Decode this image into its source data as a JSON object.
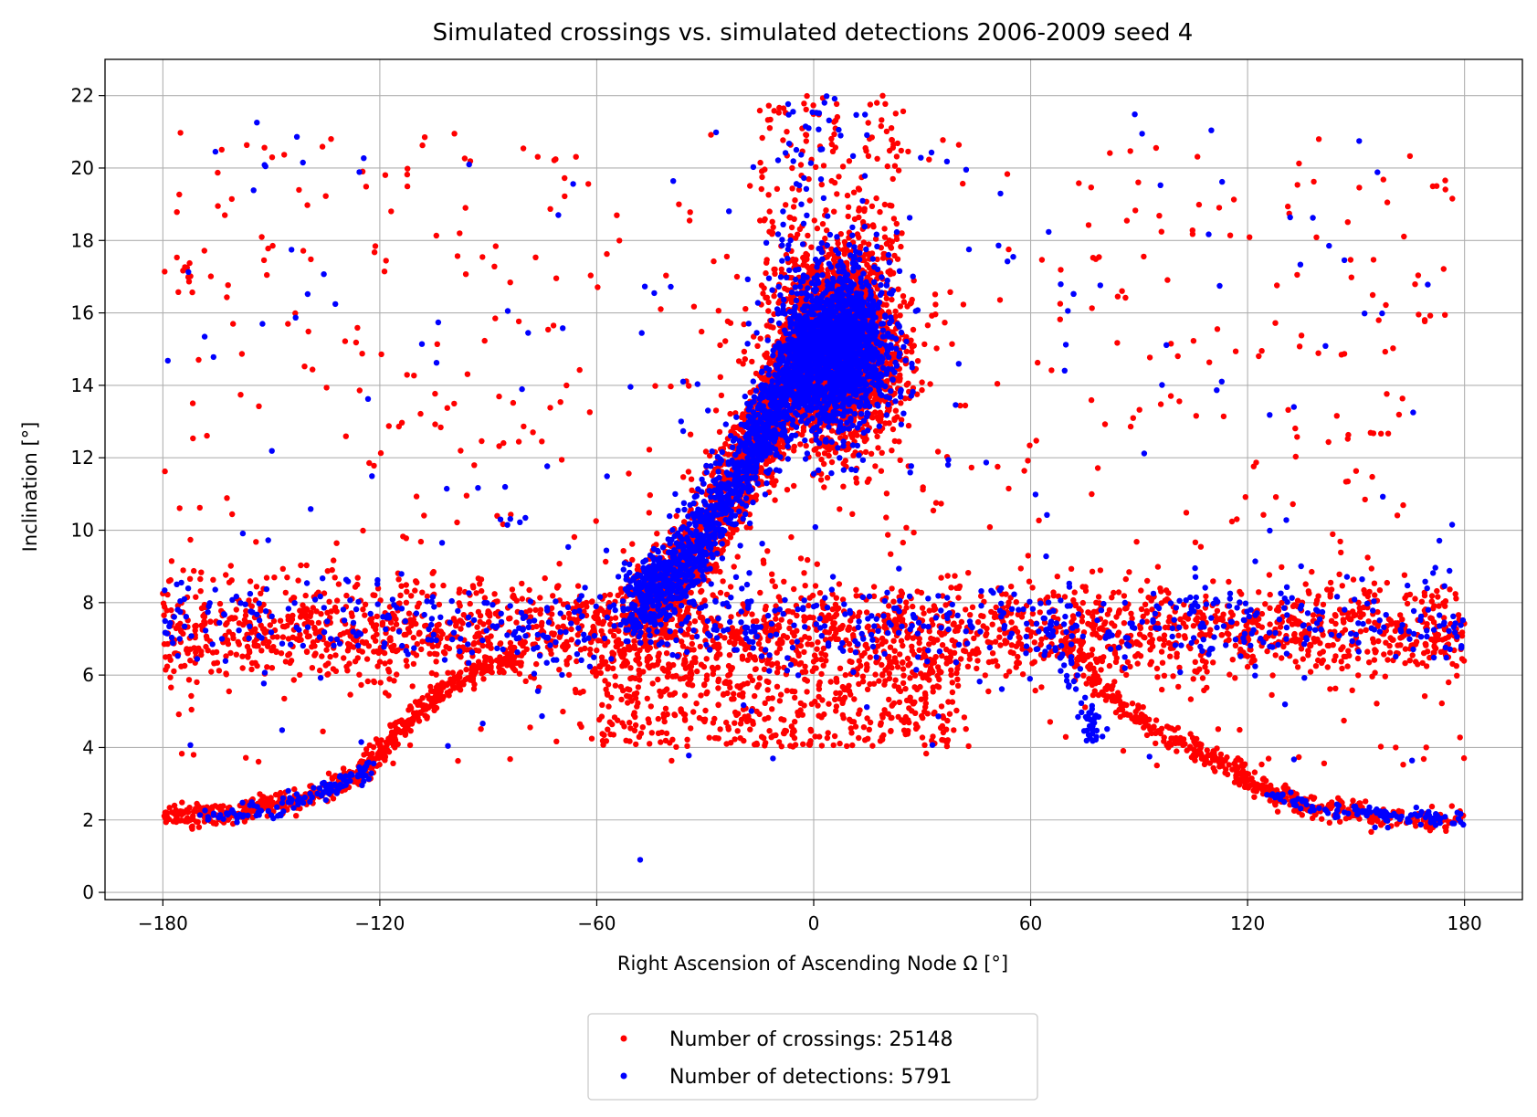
{
  "chart_data": {
    "type": "scatter",
    "title": "Simulated crossings vs. simulated detections 2006-2009 seed 4",
    "xlabel": "Right Ascension of Ascending Node Ω [°]",
    "ylabel": "Inclination [°]",
    "xlim": [
      -196,
      196
    ],
    "ylim": [
      -0.2,
      23
    ],
    "xticks": [
      -180,
      -120,
      -60,
      0,
      60,
      120,
      180
    ],
    "xtick_labels": [
      "−180",
      "−120",
      "−60",
      "0",
      "60",
      "120",
      "180"
    ],
    "yticks": [
      0,
      2,
      4,
      6,
      8,
      10,
      12,
      14,
      16,
      18,
      20,
      22
    ],
    "ytick_labels": [
      "0",
      "2",
      "4",
      "6",
      "8",
      "10",
      "12",
      "14",
      "16",
      "18",
      "20",
      "22"
    ],
    "grid": true,
    "legend_position": "below-center",
    "colors": {
      "crossings": "#ff0000",
      "detections": "#0000ff",
      "grid": "#b0b0b0",
      "axes": "#000000"
    },
    "series": [
      {
        "name": "Number of crossings: 25148",
        "color": "#ff0000",
        "clusters": [
          {
            "kind": "band",
            "x": [
              -180,
              180
            ],
            "y": [
              6,
              8.5
            ],
            "n": 2200
          },
          {
            "kind": "curve",
            "points": [
              [
                -180,
                2.1
              ],
              [
                -160,
                2.2
              ],
              [
                -140,
                2.6
              ],
              [
                -125,
                3.3
              ],
              [
                -115,
                4.5
              ],
              [
                -100,
                5.8
              ],
              [
                -80,
                6.6
              ]
            ],
            "spread": 0.15,
            "n": 600
          },
          {
            "kind": "curve",
            "points": [
              [
                70,
                7.0
              ],
              [
                80,
                5.5
              ],
              [
                100,
                4.2
              ],
              [
                115,
                3.5
              ],
              [
                125,
                2.8
              ],
              [
                140,
                2.3
              ],
              [
                160,
                2.1
              ],
              [
                180,
                2.0
              ]
            ],
            "spread": 0.15,
            "n": 500
          },
          {
            "kind": "diagonal",
            "points": [
              [
                -50,
                7.6
              ],
              [
                -35,
                9.0
              ],
              [
                -20,
                11.5
              ],
              [
                -10,
                13.5
              ],
              [
                0,
                15.0
              ]
            ],
            "spread": 0.6,
            "n": 1600
          },
          {
            "kind": "box",
            "x": [
              -8,
              22
            ],
            "y": [
              12.4,
              17.6
            ],
            "n": 2400
          },
          {
            "kind": "scatter",
            "x": [
              -180,
              180
            ],
            "y": [
              3.5,
              21
            ],
            "n": 600
          },
          {
            "kind": "scatter",
            "x": [
              -60,
              40
            ],
            "y": [
              4.0,
              6.5
            ],
            "n": 500
          },
          {
            "kind": "scatter",
            "x": [
              -15,
              25
            ],
            "y": [
              17,
              22
            ],
            "n": 160
          },
          {
            "kind": "scatter",
            "x": [
              -180,
              -172
            ],
            "y": [
              16.5,
              18
            ],
            "n": 10
          }
        ]
      },
      {
        "name": "Number of detections: 5791",
        "color": "#0000ff",
        "clusters": [
          {
            "kind": "band",
            "x": [
              -180,
              180
            ],
            "y": [
              6.4,
              8.4
            ],
            "n": 650
          },
          {
            "kind": "curve",
            "points": [
              [
                -170,
                2.1
              ],
              [
                -150,
                2.3
              ],
              [
                -135,
                2.8
              ],
              [
                -122,
                3.4
              ]
            ],
            "spread": 0.12,
            "n": 120
          },
          {
            "kind": "curve",
            "points": [
              [
                125,
                2.8
              ],
              [
                140,
                2.3
              ],
              [
                160,
                2.1
              ],
              [
                180,
                2.0
              ]
            ],
            "spread": 0.12,
            "n": 110
          },
          {
            "kind": "curve",
            "points": [
              [
                65,
                7.6
              ],
              [
                70,
                6.2
              ],
              [
                75,
                5.0
              ],
              [
                78,
                4.4
              ]
            ],
            "spread": 0.2,
            "n": 60
          },
          {
            "kind": "diagonal",
            "points": [
              [
                -50,
                7.8
              ],
              [
                -35,
                9.2
              ],
              [
                -20,
                11.6
              ],
              [
                -10,
                13.6
              ],
              [
                0,
                15.2
              ]
            ],
            "spread": 0.5,
            "n": 1300
          },
          {
            "kind": "box",
            "x": [
              -6,
              20
            ],
            "y": [
              12.8,
              17.2
            ],
            "n": 1500
          },
          {
            "kind": "scatter",
            "x": [
              -180,
              180
            ],
            "y": [
              3.5,
              21.5
            ],
            "n": 200
          },
          {
            "kind": "scatter",
            "x": [
              -10,
              15
            ],
            "y": [
              17.5,
              22
            ],
            "n": 50
          },
          {
            "kind": "point",
            "x": -48,
            "y": 0.9
          }
        ]
      }
    ]
  }
}
